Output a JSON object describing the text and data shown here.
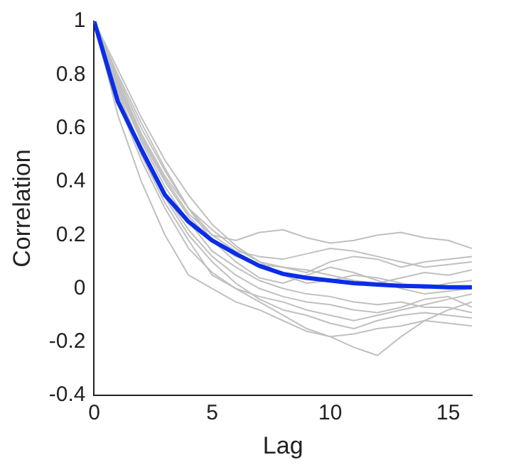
{
  "chart_data": {
    "type": "line",
    "xlabel": "Lag",
    "ylabel": "Correlation",
    "x": [
      0,
      1,
      2,
      3,
      4,
      5,
      6,
      7,
      8,
      9,
      10,
      11,
      12,
      13,
      14,
      15,
      16
    ],
    "xlim": [
      0,
      16
    ],
    "xticks": [
      0,
      5,
      10,
      15
    ],
    "ylim": [
      -0.4,
      1
    ],
    "yticks": [
      -0.4,
      -0.2,
      0,
      0.2,
      0.4,
      0.6,
      0.8,
      1
    ],
    "grid": false,
    "legend": false,
    "marker": "none",
    "line_style": "solid",
    "series": [
      {
        "color": "#0a2de8",
        "values": [
          1,
          0.7,
          0.52,
          0.35,
          0.25,
          0.18,
          0.13,
          0.085,
          0.055,
          0.04,
          0.03,
          0.02,
          0.015,
          0.01,
          0.008,
          0.005,
          0.005
        ]
      },
      {
        "color": "#c0c0c0",
        "values": [
          1,
          0.8,
          0.62,
          0.45,
          0.3,
          0.2,
          0.18,
          0.21,
          0.22,
          0.19,
          0.17,
          0.18,
          0.2,
          0.21,
          0.19,
          0.18,
          0.15
        ]
      },
      {
        "color": "#c0c0c0",
        "values": [
          1,
          0.72,
          0.5,
          0.32,
          0.18,
          0.05,
          0.0,
          -0.05,
          -0.1,
          -0.15,
          -0.18,
          -0.22,
          -0.25,
          -0.18,
          -0.12,
          -0.08,
          -0.05
        ]
      },
      {
        "color": "#c0c0c0",
        "values": [
          1,
          0.65,
          0.4,
          0.2,
          0.05,
          0.0,
          -0.05,
          -0.08,
          -0.12,
          -0.16,
          -0.18,
          -0.17,
          -0.15,
          -0.14,
          -0.12,
          -0.13,
          -0.14
        ]
      },
      {
        "color": "#c0c0c0",
        "values": [
          1,
          0.78,
          0.58,
          0.42,
          0.3,
          0.22,
          0.15,
          0.1,
          0.08,
          0.06,
          0.1,
          0.12,
          0.11,
          0.08,
          0.1,
          0.11,
          0.12
        ]
      },
      {
        "color": "#c0c0c0",
        "values": [
          1,
          0.75,
          0.55,
          0.38,
          0.25,
          0.14,
          0.08,
          0.03,
          0.0,
          -0.02,
          -0.03,
          -0.05,
          -0.06,
          -0.05,
          -0.07,
          -0.07,
          -0.09
        ]
      },
      {
        "color": "#c0c0c0",
        "values": [
          1,
          0.82,
          0.64,
          0.48,
          0.35,
          0.24,
          0.16,
          0.1,
          0.05,
          0.02,
          0.03,
          0.05,
          0.04,
          0.02,
          0.0,
          0.02,
          0.03
        ]
      },
      {
        "color": "#c0c0c0",
        "values": [
          1,
          0.7,
          0.48,
          0.3,
          0.15,
          0.06,
          0.0,
          -0.03,
          -0.05,
          -0.08,
          -0.1,
          -0.12,
          -0.1,
          -0.08,
          -0.06,
          -0.04,
          -0.02
        ]
      },
      {
        "color": "#c0c0c0",
        "values": [
          1,
          0.76,
          0.56,
          0.4,
          0.27,
          0.18,
          0.12,
          0.09,
          0.08,
          0.07,
          0.05,
          0.03,
          0.02,
          0.04,
          0.06,
          0.05,
          0.07
        ]
      },
      {
        "color": "#c0c0c0",
        "values": [
          1,
          0.74,
          0.52,
          0.35,
          0.22,
          0.12,
          0.05,
          0.0,
          -0.03,
          -0.05,
          -0.06,
          -0.08,
          -0.09,
          -0.07,
          -0.04,
          -0.03,
          -0.07
        ]
      },
      {
        "color": "#c0c0c0",
        "values": [
          1,
          0.79,
          0.6,
          0.44,
          0.3,
          0.18,
          0.1,
          0.04,
          0.02,
          0.05,
          0.08,
          0.06,
          0.03,
          0.0,
          -0.02,
          -0.01,
          0.0
        ]
      },
      {
        "color": "#c0c0c0",
        "values": [
          1,
          0.73,
          0.51,
          0.34,
          0.2,
          0.1,
          0.02,
          -0.04,
          -0.08,
          -0.1,
          -0.13,
          -0.15,
          -0.12,
          -0.1,
          -0.09,
          -0.1,
          -0.11
        ]
      },
      {
        "color": "#c0c0c0",
        "values": [
          1,
          0.77,
          0.57,
          0.41,
          0.28,
          0.2,
          0.14,
          0.12,
          0.11,
          0.13,
          0.15,
          0.14,
          0.12,
          0.1,
          0.08,
          0.09,
          0.1
        ]
      }
    ]
  }
}
